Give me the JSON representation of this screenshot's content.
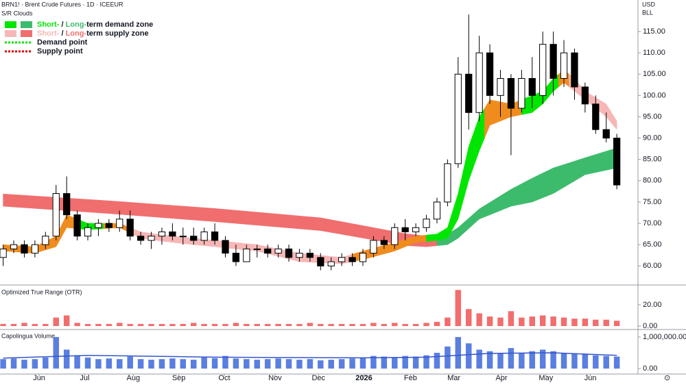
{
  "header": {
    "symbol": "BRN1! · Brent Crude Futures · 1D · ICEEUR",
    "indicator": "S/R Clouds",
    "currency": "USD",
    "unit": "BLL"
  },
  "chart_data": [
    {
      "type": "candlestick",
      "x": [
        0,
        1,
        2,
        3,
        4,
        5,
        6,
        7,
        8,
        9,
        10,
        11,
        12,
        13,
        14,
        15,
        16,
        17,
        18,
        19,
        20,
        21,
        22,
        23,
        24,
        25,
        26,
        27,
        28,
        29,
        30,
        31,
        32,
        33,
        34,
        35,
        36,
        37,
        38,
        39,
        40,
        41,
        42,
        43,
        44,
        45,
        46,
        47,
        48,
        49,
        50,
        51,
        52,
        53,
        54,
        55,
        56,
        57,
        58
      ],
      "open": [
        62,
        64,
        65,
        63,
        65,
        67,
        77,
        72,
        67,
        69,
        70,
        69,
        71,
        67,
        66,
        67,
        68,
        67,
        67,
        66,
        68,
        66,
        63,
        61,
        64,
        64,
        63,
        64,
        62,
        63,
        62,
        60,
        61,
        62,
        61,
        63,
        66,
        65,
        69,
        68,
        69,
        71,
        75,
        84,
        105,
        96,
        110,
        100,
        104,
        97,
        104,
        100,
        112,
        104,
        110,
        102,
        98,
        92,
        90
      ],
      "high": [
        65,
        66,
        66,
        66,
        68,
        79,
        81,
        73,
        70,
        71,
        71,
        73,
        73,
        68,
        68,
        69,
        70,
        69,
        69,
        69,
        70,
        67,
        65,
        65,
        65,
        65,
        65,
        65,
        64,
        64,
        63,
        62,
        63,
        63,
        64,
        67,
        67,
        70,
        71,
        70,
        72,
        76,
        85,
        109,
        119,
        114,
        112,
        106,
        105,
        106,
        109,
        115,
        115,
        113,
        111,
        103,
        100,
        96,
        91
      ],
      "low": [
        60,
        63,
        62,
        62,
        64,
        66,
        71,
        66,
        66,
        67,
        68,
        68,
        66,
        65,
        64,
        65,
        66,
        65,
        65,
        65,
        65,
        62,
        60,
        61,
        62,
        62,
        62,
        61,
        61,
        61,
        59,
        59,
        60,
        60,
        60,
        62,
        64,
        64,
        66,
        67,
        68,
        70,
        74,
        83,
        92,
        94,
        98,
        95,
        86,
        96,
        97,
        98,
        100,
        102,
        99,
        96,
        91,
        89,
        78
      ],
      "close": [
        64,
        65,
        63,
        65,
        67,
        77,
        72,
        67,
        69,
        70,
        69,
        71,
        67,
        66,
        67,
        68,
        67,
        67,
        66,
        68,
        66,
        63,
        61,
        64,
        64,
        63,
        64,
        62,
        63,
        62,
        60,
        61,
        62,
        61,
        63,
        66,
        65,
        69,
        68,
        69,
        71,
        75,
        84,
        105,
        96,
        110,
        100,
        104,
        97,
        104,
        100,
        112,
        104,
        110,
        102,
        98,
        92,
        90,
        79
      ],
      "up_color": "#ffffff",
      "down_color": "#000000",
      "outline_color": "#000000",
      "xlim": [
        -0.3,
        60
      ],
      "ylim": [
        55.7,
        122.4
      ],
      "xticks": [
        {
          "value": 3.4,
          "label": "Jun"
        },
        {
          "value": 7.7,
          "label": "Jul"
        },
        {
          "value": 12.3,
          "label": "Aug"
        },
        {
          "value": 16.6,
          "label": "Sep"
        },
        {
          "value": 20.9,
          "label": "Oct"
        },
        {
          "value": 25.7,
          "label": "Nov"
        },
        {
          "value": 29.8,
          "label": "Dec"
        },
        {
          "value": 34.1,
          "label": "2026"
        },
        {
          "value": 38.5,
          "label": "Feb"
        },
        {
          "value": 42.6,
          "label": "Mar"
        },
        {
          "value": 47.1,
          "label": "Apr"
        },
        {
          "value": 51.3,
          "label": "May"
        },
        {
          "value": 55.5,
          "label": "Jun"
        }
      ],
      "yticks": [
        {
          "value": 60,
          "label": "60.00"
        },
        {
          "value": 65,
          "label": "65.00"
        },
        {
          "value": 70,
          "label": "70.00"
        },
        {
          "value": 75,
          "label": "75.00"
        },
        {
          "value": 80,
          "label": "80.00"
        },
        {
          "value": 85,
          "label": "85.00"
        },
        {
          "value": 90,
          "label": "90.00"
        },
        {
          "value": 95,
          "label": "95.00"
        },
        {
          "value": 100,
          "label": "100.00"
        },
        {
          "value": 105,
          "label": "105.00"
        },
        {
          "value": 110,
          "label": "110.00"
        },
        {
          "value": 115,
          "label": "115.00"
        }
      ],
      "bands": [
        {
          "x": [
            0,
            10,
            20,
            30,
            38,
            40,
            42,
            43,
            45,
            48,
            50,
            52,
            55,
            58
          ],
          "upper": [
            76.9,
            75.3,
            73.5,
            71.3,
            67.6,
            67,
            67.5,
            69,
            73.4,
            78,
            80.6,
            83,
            85.4,
            87.7
          ],
          "lower": [
            74,
            72.3,
            70.4,
            68.3,
            64.8,
            64.5,
            65,
            66.5,
            71,
            74,
            75,
            77,
            81.4,
            83
          ],
          "colors": [
            "#f06e6e",
            "#f06e6e",
            "#f06e6e",
            "#f06e6e",
            "#f06e6e",
            "#f06e6e",
            "#3dbb6c",
            "#3dbb6c",
            "#3dbb6c",
            "#3dbb6c",
            "#3dbb6c",
            "#3dbb6c",
            "#3dbb6c",
            "#3dbb6c"
          ]
        },
        {
          "x": [
            0,
            3,
            5,
            6,
            8,
            11,
            13,
            16,
            20,
            24,
            28,
            32,
            34,
            37,
            39,
            41,
            42,
            43,
            44,
            45,
            46,
            48,
            50,
            51,
            52,
            53,
            54,
            55,
            57,
            58
          ],
          "upper": [
            65,
            64.5,
            67,
            72,
            70,
            70,
            68,
            67,
            66,
            65,
            63,
            62,
            63.5,
            65.5,
            67,
            67.5,
            69,
            77,
            88,
            95,
            99,
            98,
            100,
            101,
            104,
            106,
            104,
            101,
            98,
            94
          ],
          "lower": [
            63.5,
            63,
            64.5,
            69,
            68.5,
            69,
            66.5,
            65.5,
            64.5,
            63.5,
            61,
            60.5,
            61.5,
            63.5,
            65.5,
            66,
            66.5,
            71,
            80,
            87,
            93,
            95,
            96,
            98,
            101,
            103,
            101,
            99,
            95,
            92
          ],
          "colors": [
            "#f08c1e",
            "#f08c1e",
            "#f08c1e",
            "#f08c1e",
            "#00e600",
            "#f08c1e",
            "#f7b7b7",
            "#f7b7b7",
            "#f7b7b7",
            "#f7b7b7",
            "#f7b7b7",
            "#f7b7b7",
            "#f08c1e",
            "#f08c1e",
            "#f08c1e",
            "#00e600",
            "#00e600",
            "#00e600",
            "#00e600",
            "#00e600",
            "#f08c1e",
            "#f08c1e",
            "#00e600",
            "#00e600",
            "#00e600",
            "#f08c1e",
            "#f7b7b7",
            "#f7b7b7",
            "#f7b7b7",
            "#f7b7b7"
          ]
        }
      ],
      "legend": [
        {
          "style": "box",
          "parts": [
            "Short-",
            " / ",
            "Long-",
            "term demand zone"
          ],
          "colors": [
            "#00e600",
            "#3dbb6c"
          ]
        },
        {
          "style": "box",
          "parts": [
            "Short-",
            " / ",
            "Long-",
            "term supply zone"
          ],
          "colors": [
            "#f7b7b7",
            "#f06e6e"
          ]
        },
        {
          "style": "dots",
          "parts": [
            "Demand point"
          ],
          "colors": [
            "#00e600"
          ]
        },
        {
          "style": "dots",
          "parts": [
            "Supply point"
          ],
          "colors": [
            "#e00000"
          ]
        }
      ]
    },
    {
      "type": "bar",
      "title": "Optimized True Range (OTR)",
      "x": [
        0,
        1,
        2,
        3,
        4,
        5,
        6,
        7,
        8,
        9,
        10,
        11,
        12,
        13,
        14,
        15,
        16,
        17,
        18,
        19,
        20,
        21,
        22,
        23,
        24,
        25,
        26,
        27,
        28,
        29,
        30,
        31,
        32,
        33,
        34,
        35,
        36,
        37,
        38,
        39,
        40,
        41,
        42,
        43,
        44,
        45,
        46,
        47,
        48,
        49,
        50,
        51,
        52,
        53,
        54,
        55,
        56,
        57,
        58
      ],
      "values": [
        2,
        2,
        3,
        2,
        2,
        8,
        10,
        3,
        2,
        2,
        2,
        3,
        2,
        2,
        2,
        2,
        2,
        2,
        3,
        2,
        2,
        2,
        3,
        2,
        2,
        2,
        2,
        2,
        2,
        3,
        2,
        2,
        2,
        2,
        2,
        3,
        2,
        3,
        2,
        2,
        3,
        4,
        8,
        34,
        16,
        12,
        9,
        8,
        14,
        8,
        9,
        10,
        9,
        8,
        7,
        7,
        6,
        6,
        5
      ],
      "color": "#f26d6d",
      "xlim": [
        -0.3,
        60
      ],
      "ylim": [
        -2.6,
        37.4
      ],
      "yticks": [
        {
          "value": 0,
          "label": "0.00"
        },
        {
          "value": 20,
          "label": "20.00"
        }
      ]
    },
    {
      "type": "bar",
      "title": "Capolingua Volume",
      "x": [
        0,
        1,
        2,
        3,
        4,
        5,
        6,
        7,
        8,
        9,
        10,
        11,
        12,
        13,
        14,
        15,
        16,
        17,
        18,
        19,
        20,
        21,
        22,
        23,
        24,
        25,
        26,
        27,
        28,
        29,
        30,
        31,
        32,
        33,
        34,
        35,
        36,
        37,
        38,
        39,
        40,
        41,
        42,
        43,
        44,
        45,
        46,
        47,
        48,
        49,
        50,
        51,
        52,
        53,
        54,
        55,
        56,
        57,
        58
      ],
      "values": [
        300000,
        320000,
        280000,
        300000,
        350000,
        1000000,
        600000,
        400000,
        350000,
        300000,
        320000,
        300000,
        380000,
        300000,
        280000,
        300000,
        320000,
        300000,
        280000,
        350000,
        330000,
        400000,
        320000,
        300000,
        280000,
        300000,
        320000,
        300000,
        280000,
        300000,
        260000,
        280000,
        300000,
        320000,
        350000,
        400000,
        380000,
        350000,
        400000,
        380000,
        420000,
        500000,
        700000,
        1000000,
        800000,
        600000,
        550000,
        500000,
        650000,
        500000,
        550000,
        600000,
        550000,
        500000,
        480000,
        450000,
        420000,
        400000,
        380000
      ],
      "color": "#5b7fe0",
      "xlim": [
        -0.3,
        60
      ],
      "ylim": [
        -152000,
        1217000
      ],
      "yticks": [
        {
          "value": 0,
          "label": "0.00"
        },
        {
          "value": 1000000,
          "label": "1,000,000.00"
        }
      ],
      "line": {
        "x": [
          0,
          8,
          20,
          34,
          40,
          46,
          52,
          58
        ],
        "values": [
          330000,
          420000,
          360000,
          340000,
          360000,
          480000,
          500000,
          420000
        ],
        "color": "#3355cc"
      }
    }
  ]
}
